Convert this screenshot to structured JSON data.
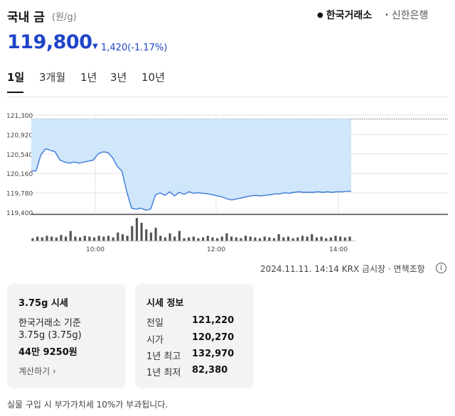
{
  "header": {
    "title": "국내 금",
    "unit": "(원/g)",
    "sources": [
      {
        "label": "한국거래소",
        "active": true
      },
      {
        "label": "신한은행",
        "active": false
      }
    ]
  },
  "price": {
    "current": "119,800",
    "direction_icon": "down-triangle-icon",
    "change": "1,420",
    "change_pct": "(-1.17%)",
    "color": "#1e44c8"
  },
  "tabs": [
    {
      "label": "1일",
      "active": true
    },
    {
      "label": "3개월",
      "active": false
    },
    {
      "label": "1년",
      "active": false
    },
    {
      "label": "3년",
      "active": false
    },
    {
      "label": "10년",
      "active": false
    }
  ],
  "chart_data": {
    "type": "area",
    "y_ticks": [
      "121,300",
      "120,920",
      "120,540",
      "120,160",
      "119,780",
      "119,400"
    ],
    "ylim": [
      119400,
      121300
    ],
    "x_ticks": [
      "10:00",
      "12:00",
      "14:00"
    ],
    "grid": true,
    "fill_color": "#cfe6fb",
    "line_color": "#3a78d8",
    "series": [
      {
        "values": [
          120200,
          120210,
          120520,
          120640,
          120610,
          120580,
          120420,
          120380,
          120360,
          120380,
          120360,
          120380,
          120400,
          120420,
          120540,
          120580,
          120570,
          120470,
          120300,
          120200,
          119800,
          119480,
          119460,
          119480,
          119440,
          119460,
          119740,
          119780,
          119730,
          119800,
          119720,
          119790,
          119750,
          119800,
          119770,
          119780,
          119770,
          119760,
          119740,
          119720,
          119700,
          119660,
          119640,
          119660,
          119680,
          119700,
          119720,
          119730,
          119720,
          119730,
          119740,
          119760,
          119760,
          119780,
          119770,
          119790,
          119800,
          119790,
          119790,
          119790,
          119800,
          119790,
          119800,
          119790,
          119800,
          119800,
          119810,
          119810
        ]
      }
    ],
    "volume": [
      3,
      5,
      4,
      6,
      5,
      4,
      7,
      5,
      12,
      5,
      4,
      6,
      5,
      4,
      6,
      5,
      6,
      4,
      10,
      8,
      6,
      18,
      28,
      22,
      14,
      10,
      16,
      6,
      4,
      9,
      5,
      12,
      3,
      4,
      5,
      3,
      4,
      6,
      4,
      3,
      5,
      9,
      5,
      4,
      3,
      6,
      5,
      4,
      3,
      5,
      4,
      3,
      8,
      4,
      5,
      3,
      4,
      6,
      5,
      8,
      4,
      5,
      3,
      4,
      6,
      5,
      4,
      5
    ],
    "line_series_note": ""
  },
  "meta": {
    "text": "2024.11.11. 14:14 KRX 금시장 · 면책조항",
    "info_icon": "info-icon"
  },
  "card1": {
    "title": "3.75g 시세",
    "line1": "한국거래소 기준",
    "line2": "3.75g (3.75g)",
    "price": "44만 9250원",
    "link": "계산하기 ›"
  },
  "card2": {
    "title": "시세 정보",
    "rows": [
      {
        "label": "전일",
        "value": "121,220"
      },
      {
        "label": "시가",
        "value": "120,270"
      },
      {
        "label": "1년 최고",
        "value": "132,970"
      },
      {
        "label": "1년 최저",
        "value": "82,380"
      }
    ]
  },
  "note": "실물 구입 시 부가가치세 10%가 부과됩니다."
}
